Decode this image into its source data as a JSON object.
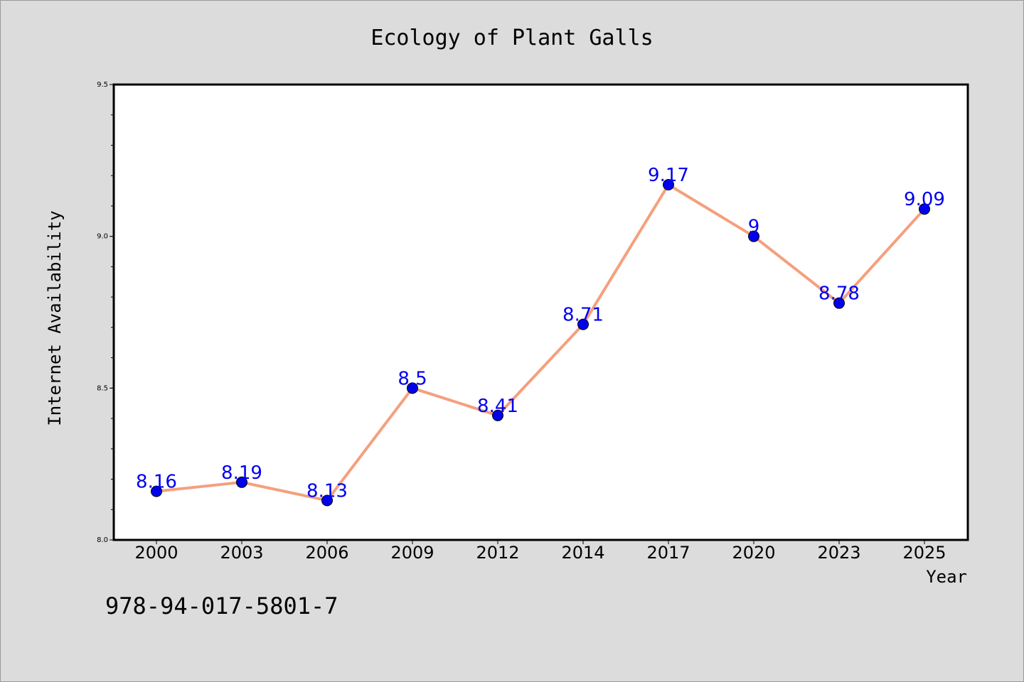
{
  "chart_data": {
    "type": "line",
    "title": "Ecology of Plant Galls",
    "xlabel": "Year",
    "ylabel": "Internet Availability",
    "categories": [
      "2000",
      "2003",
      "2006",
      "2009",
      "2012",
      "2014",
      "2017",
      "2020",
      "2023",
      "2025"
    ],
    "series": [
      {
        "values": [
          8.16,
          8.19,
          8.13,
          8.5,
          8.41,
          8.71,
          9.17,
          9,
          8.78,
          9.09
        ],
        "line_color": "#f4a07e",
        "marker_color": "#0000ee",
        "label_color": "#0000ee"
      }
    ],
    "data_labels": [
      "8.16",
      "8.19",
      "8.13",
      "8.5",
      "8.41",
      "8.71",
      "9.17",
      "9",
      "8.78",
      "9.09"
    ],
    "ylim": [
      8.0,
      9.5
    ],
    "yticks": [
      "8.0",
      "8.5",
      "9.0",
      "9.5"
    ],
    "grid": false,
    "legend": "none"
  },
  "annotation": {
    "isbn": "978-94-017-5801-7"
  }
}
